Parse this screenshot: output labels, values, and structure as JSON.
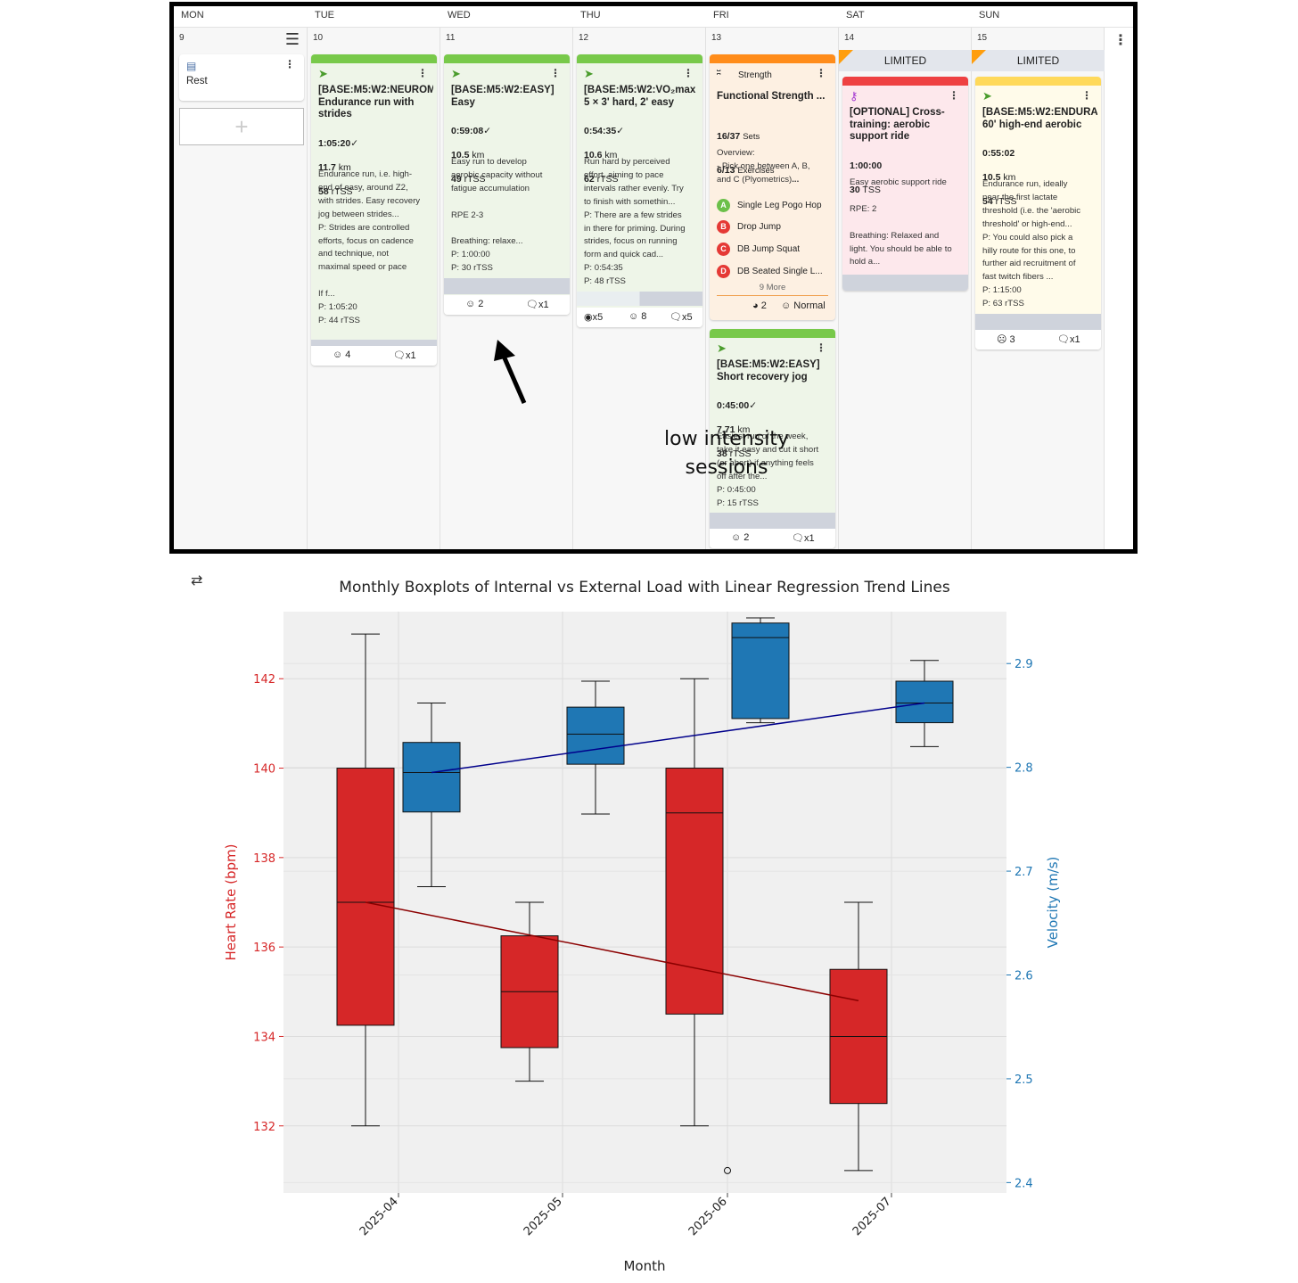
{
  "calendar": {
    "days": [
      {
        "dow": "MON",
        "date": "9"
      },
      {
        "dow": "TUE",
        "date": "10"
      },
      {
        "dow": "WED",
        "date": "11"
      },
      {
        "dow": "THU",
        "date": "12"
      },
      {
        "dow": "FRI",
        "date": "13"
      },
      {
        "dow": "SAT",
        "date": "14"
      },
      {
        "dow": "SUN",
        "date": "15"
      }
    ],
    "mon": {
      "rest_label": "Rest"
    },
    "tue": {
      "title": "[BASE:M5:W2:NEUROM\nEndurance run with\nstrides",
      "duration": "1:05:20",
      "distance": "11.7",
      "dist_unit": "km",
      "load": "58",
      "load_unit": "rTSS",
      "desc": "Endurance run, i.e. high-\nend of easy, around Z2,\nwith strides. Easy recovery\njog between strides...\nP: Strides are controlled\nefforts, focus on cadence\nand technique, not\nmaximal speed or pace\n\nIf f...\nP: 1:05:20\nP: 44 rTSS",
      "feel": "4",
      "comments": "x1"
    },
    "wed": {
      "title": "[BASE:M5:W2:EASY]\nEasy",
      "duration": "0:59:08",
      "distance": "10.5",
      "dist_unit": "km",
      "load": "49",
      "load_unit": "rTSS",
      "desc": "Easy run to develop\naerobic capacity without\nfatigue accumulation\n\nRPE 2-3\n\nBreathing: relaxe...\nP: 1:00:00\nP: 30 rTSS",
      "feel": "2",
      "comments": "x1"
    },
    "thu": {
      "title": "[BASE:M5:W2:VO₂max\n5 × 3' hard, 2' easy",
      "duration": "0:54:35",
      "distance": "10.6",
      "dist_unit": "km",
      "load": "62",
      "load_unit": "rTSS",
      "desc": "Run hard by perceived\neffort, aiming to pace\nintervals rather evenly. Try\nto finish with somethin...\nP: There are a few strides\nin there for priming. During\nstrides, focus on running\nform and quick cad...\nP: 0:54:35\nP: 48 rTSS",
      "medals": "x5",
      "feel": "8",
      "comments": "x5"
    },
    "fri_strength": {
      "type_label": "Strength",
      "title": "Functional Strength ...",
      "sets": "16/37",
      "sets_label": "Sets",
      "exercises": "6/13",
      "exercises_label": "Exercises",
      "overview": "Overview:\n- Pick one between A, B,\nand C (Plyometrics)",
      "overview_more": "...",
      "items": [
        {
          "letter": "A",
          "name": "Single Leg Pogo Hop",
          "color": "#6cc04a"
        },
        {
          "letter": "B",
          "name": "Drop Jump",
          "color": "#e53935"
        },
        {
          "letter": "C",
          "name": "DB Jump Squat",
          "color": "#e53935"
        },
        {
          "letter": "D",
          "name": "DB Seated Single L...",
          "color": "#e53935"
        }
      ],
      "more": "9 More",
      "effort": "2",
      "feel_label": "Normal"
    },
    "fri_run": {
      "title": "[BASE:M5:W2:EASY]\nShort recovery jog",
      "duration": "0:45:00",
      "distance": "7.71",
      "dist_unit": "km",
      "load": "38",
      "load_unit": "rTSS",
      "desc": "Easiest run of the week,\ntake it easy and cut it short\n(or abort) if anything feels\noff after the...\nP: 0:45:00\nP: 15 rTSS",
      "feel": "2",
      "comments": "x1"
    },
    "sat": {
      "limited": "LIMITED",
      "title": "[OPTIONAL] Cross-\ntraining: aerobic\nsupport ride",
      "duration": "1:00:00",
      "load": "30",
      "load_unit": "TSS",
      "desc": "Easy aerobic support ride\n\nRPE: 2\n\nBreathing: Relaxed and\nlight. You should be able to\nhold a..."
    },
    "sun": {
      "limited": "LIMITED",
      "title": "[BASE:M5:W2:ENDURA\n60' high-end aerobic",
      "duration": "0:55:02",
      "distance": "10.5",
      "dist_unit": "km",
      "load": "54",
      "load_unit": "rTSS",
      "desc": "Endurance run, ideally\nnear the first lactate\nthreshold (i.e. the 'aerobic\nthreshold' or high-end...\nP: You could also pick a\nhilly route for this one, to\nfurther aid recruitment of\nfast twitch fibers ...\nP: 1:15:00\nP: 63 rTSS",
      "feel": "3",
      "comments": "x1"
    },
    "annotation": "low intensity\nsessions"
  },
  "chart_data": {
    "type": "boxplot",
    "title": "Monthly Boxplots of Internal vs External Load with Linear Regression Trend Lines",
    "xlabel": "Month",
    "ylabel_left": "Heart Rate (bpm)",
    "ylabel_right": "Velocity (m/s)",
    "categories": [
      "2025-04",
      "2025-05",
      "2025-06",
      "2025-07"
    ],
    "ylim_left": [
      130.5,
      143.5
    ],
    "ylim_right": [
      2.39,
      2.95
    ],
    "yticks_left": [
      132,
      134,
      136,
      138,
      140,
      142
    ],
    "yticks_right": [
      2.4,
      2.5,
      2.6,
      2.7,
      2.8,
      2.9
    ],
    "colors": {
      "heart_rate": "#d62728",
      "velocity": "#1f77b4",
      "hr_trend": "#8b0000",
      "vel_trend": "#00008b",
      "left_axis_text": "#d62728",
      "right_axis_text": "#1f77b4"
    },
    "series": [
      {
        "name": "Heart Rate",
        "axis": "left",
        "boxes": [
          {
            "min": 132,
            "q1": 134.25,
            "median": 137,
            "q3": 140,
            "max": 143
          },
          {
            "min": 133,
            "q1": 133.75,
            "median": 135,
            "q3": 136.25,
            "max": 137
          },
          {
            "min": 132,
            "q1": 134.5,
            "median": 139,
            "q3": 140,
            "max": 142,
            "outliers": [
              131
            ]
          },
          {
            "min": 131,
            "q1": 132.5,
            "median": 134,
            "q3": 135.5,
            "max": 137
          }
        ]
      },
      {
        "name": "Velocity",
        "axis": "right",
        "boxes": [
          {
            "min": 2.685,
            "q1": 2.757,
            "median": 2.795,
            "q3": 2.824,
            "max": 2.862
          },
          {
            "min": 2.755,
            "q1": 2.803,
            "median": 2.832,
            "q3": 2.858,
            "max": 2.883
          },
          {
            "min": 2.843,
            "q1": 2.847,
            "median": 2.925,
            "q3": 2.939,
            "max": 2.944
          },
          {
            "min": 2.82,
            "q1": 2.843,
            "median": 2.862,
            "q3": 2.883,
            "max": 2.903
          }
        ]
      }
    ],
    "trend_hr": [
      137,
      134.8
    ],
    "trend_vel": [
      2.795,
      2.862
    ]
  }
}
